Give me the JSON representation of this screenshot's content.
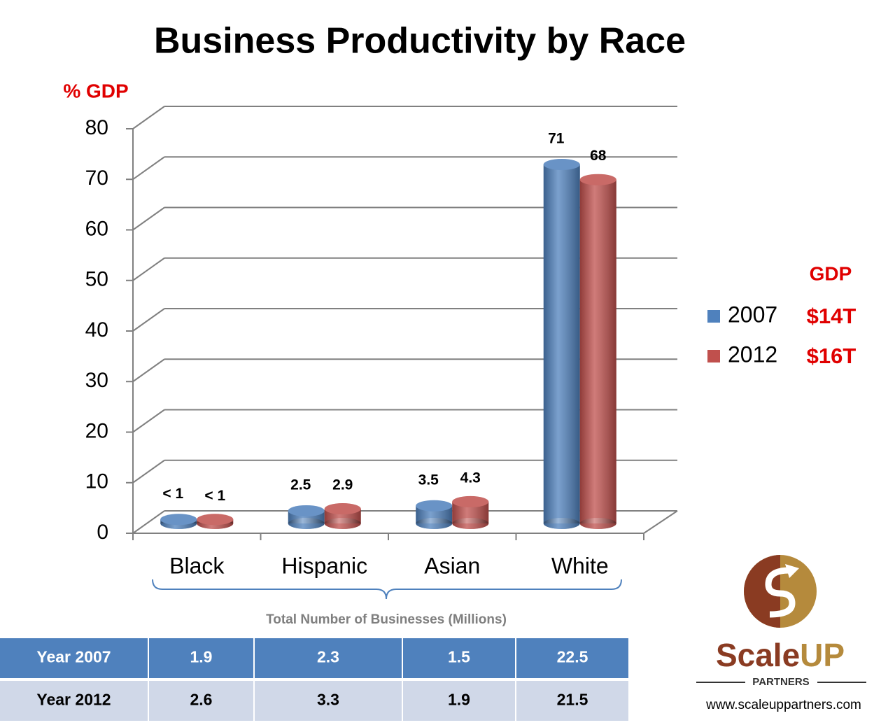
{
  "chart_data": {
    "type": "bar",
    "title": "Business Productivity by Race",
    "y_label": "% GDP",
    "categories": [
      "Black",
      "Hispanic",
      "Asian",
      "White"
    ],
    "series": [
      {
        "name": "2007",
        "color": "#4f81bd",
        "values": [
          0.8,
          2.5,
          3.5,
          71
        ],
        "value_labels": [
          "< 1",
          "2.5",
          "3.5",
          "71"
        ],
        "gdp": "$14T"
      },
      {
        "name": "2012",
        "color": "#c0504d",
        "values": [
          0.8,
          2.9,
          4.3,
          68
        ],
        "value_labels": [
          "< 1",
          "2.9",
          "4.3",
          "68"
        ],
        "gdp": "$16T"
      }
    ],
    "legend_title": "GDP",
    "ylim": [
      0,
      80
    ],
    "yticks": [
      0,
      10,
      20,
      30,
      40,
      50,
      60,
      70,
      80
    ],
    "grid": true
  },
  "table": {
    "title": "Total Number of Businesses (Millions)",
    "rows": [
      [
        "Year 2007",
        1.9,
        2.3,
        1.5,
        22.5
      ],
      [
        "Year 2012",
        2.6,
        3.3,
        1.9,
        21.5
      ]
    ]
  },
  "logo": {
    "brand": [
      "Scale",
      "UP"
    ],
    "sub": "PARTNERS",
    "url": "www.scaleuppartners.com"
  }
}
